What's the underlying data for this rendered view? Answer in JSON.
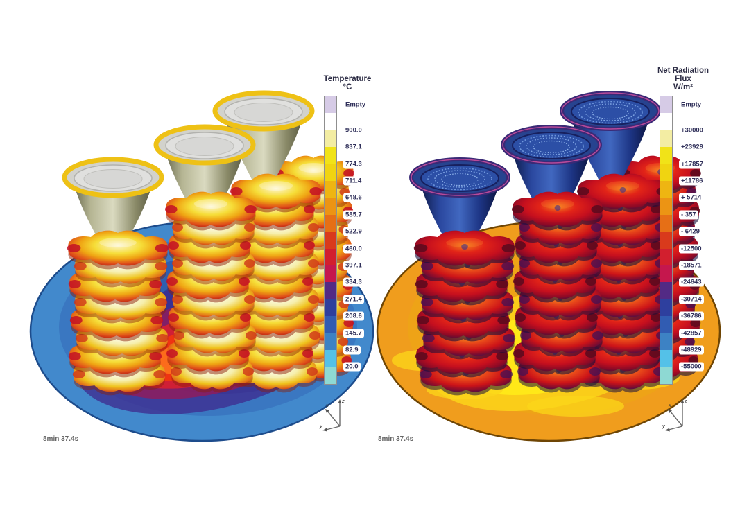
{
  "panels": {
    "left": {
      "legend_title_lines": [
        "Temperature",
        "°C"
      ],
      "legend": {
        "empty_label": "Empty",
        "tick_labels": [
          "900.0",
          "837.1",
          "774.3",
          "711.4",
          "648.6",
          "585.7",
          "522.9",
          "460.0",
          "397.1",
          "334.3",
          "271.4",
          "208.6",
          "145.7",
          "82.9",
          "20.0"
        ]
      },
      "timestamp": "8min 37.4s"
    },
    "right": {
      "legend_title_lines": [
        "Net Radiation",
        "Flux",
        "W/m²"
      ],
      "legend": {
        "empty_label": "Empty",
        "tick_labels": [
          "+30000",
          "+23929",
          "+17857",
          "+11786",
          "+ 5714",
          "- 357",
          "- 6429",
          "-12500",
          "-18571",
          "-24643",
          "-30714",
          "-36786",
          "-42857",
          "-48929",
          "-55000"
        ]
      },
      "timestamp": "8min 37.4s"
    }
  },
  "palette": {
    "empty_color": "#d6cbe6",
    "band_colors": [
      "#ffffff",
      "#f3eda3",
      "#f1e318",
      "#f0d411",
      "#eeb512",
      "#ec9414",
      "#e66f16",
      "#d93a1c",
      "#d21f2e",
      "#c5174d",
      "#532a85",
      "#2e3f9e",
      "#315cb2",
      "#3d82c4",
      "#54c1e8",
      "#8ed9d3"
    ]
  },
  "axis_triad": {
    "x": "x",
    "y": "y",
    "z": "z"
  },
  "chart_data": [
    {
      "type": "heatmap",
      "title": "Temperature",
      "units": "°C",
      "legend_entries": [
        "Empty"
      ],
      "scale_ticks": [
        900.0,
        837.1,
        774.3,
        711.4,
        648.6,
        585.7,
        522.9,
        460.0,
        397.1,
        334.3,
        271.4,
        208.6,
        145.7,
        82.9,
        20.0
      ],
      "scale_range": [
        20.0,
        900.0
      ],
      "time": "8min 37.4s",
      "subject": "three stacks of cloverleaf cast parts with pour-cup funnels on a circular build plate; parts glow yellow-orange-red hot, plate is cool blue with red-hot halo under the stacks"
    },
    {
      "type": "heatmap",
      "title": "Net Radiation Flux",
      "units": "W/m²",
      "legend_entries": [
        "Empty"
      ],
      "scale_ticks": [
        30000,
        23929,
        17857,
        11786,
        5714,
        -357,
        -6429,
        -12500,
        -18571,
        -24643,
        -30714,
        -36786,
        -42857,
        -48929,
        -55000
      ],
      "scale_range": [
        -55000,
        30000
      ],
      "time": "8min 37.4s",
      "subject": "same three casting stacks; parts show strongly negative flux (dark red/maroon), funnels deep blue, plate orange with bright yellow halo under the stacks"
    }
  ]
}
